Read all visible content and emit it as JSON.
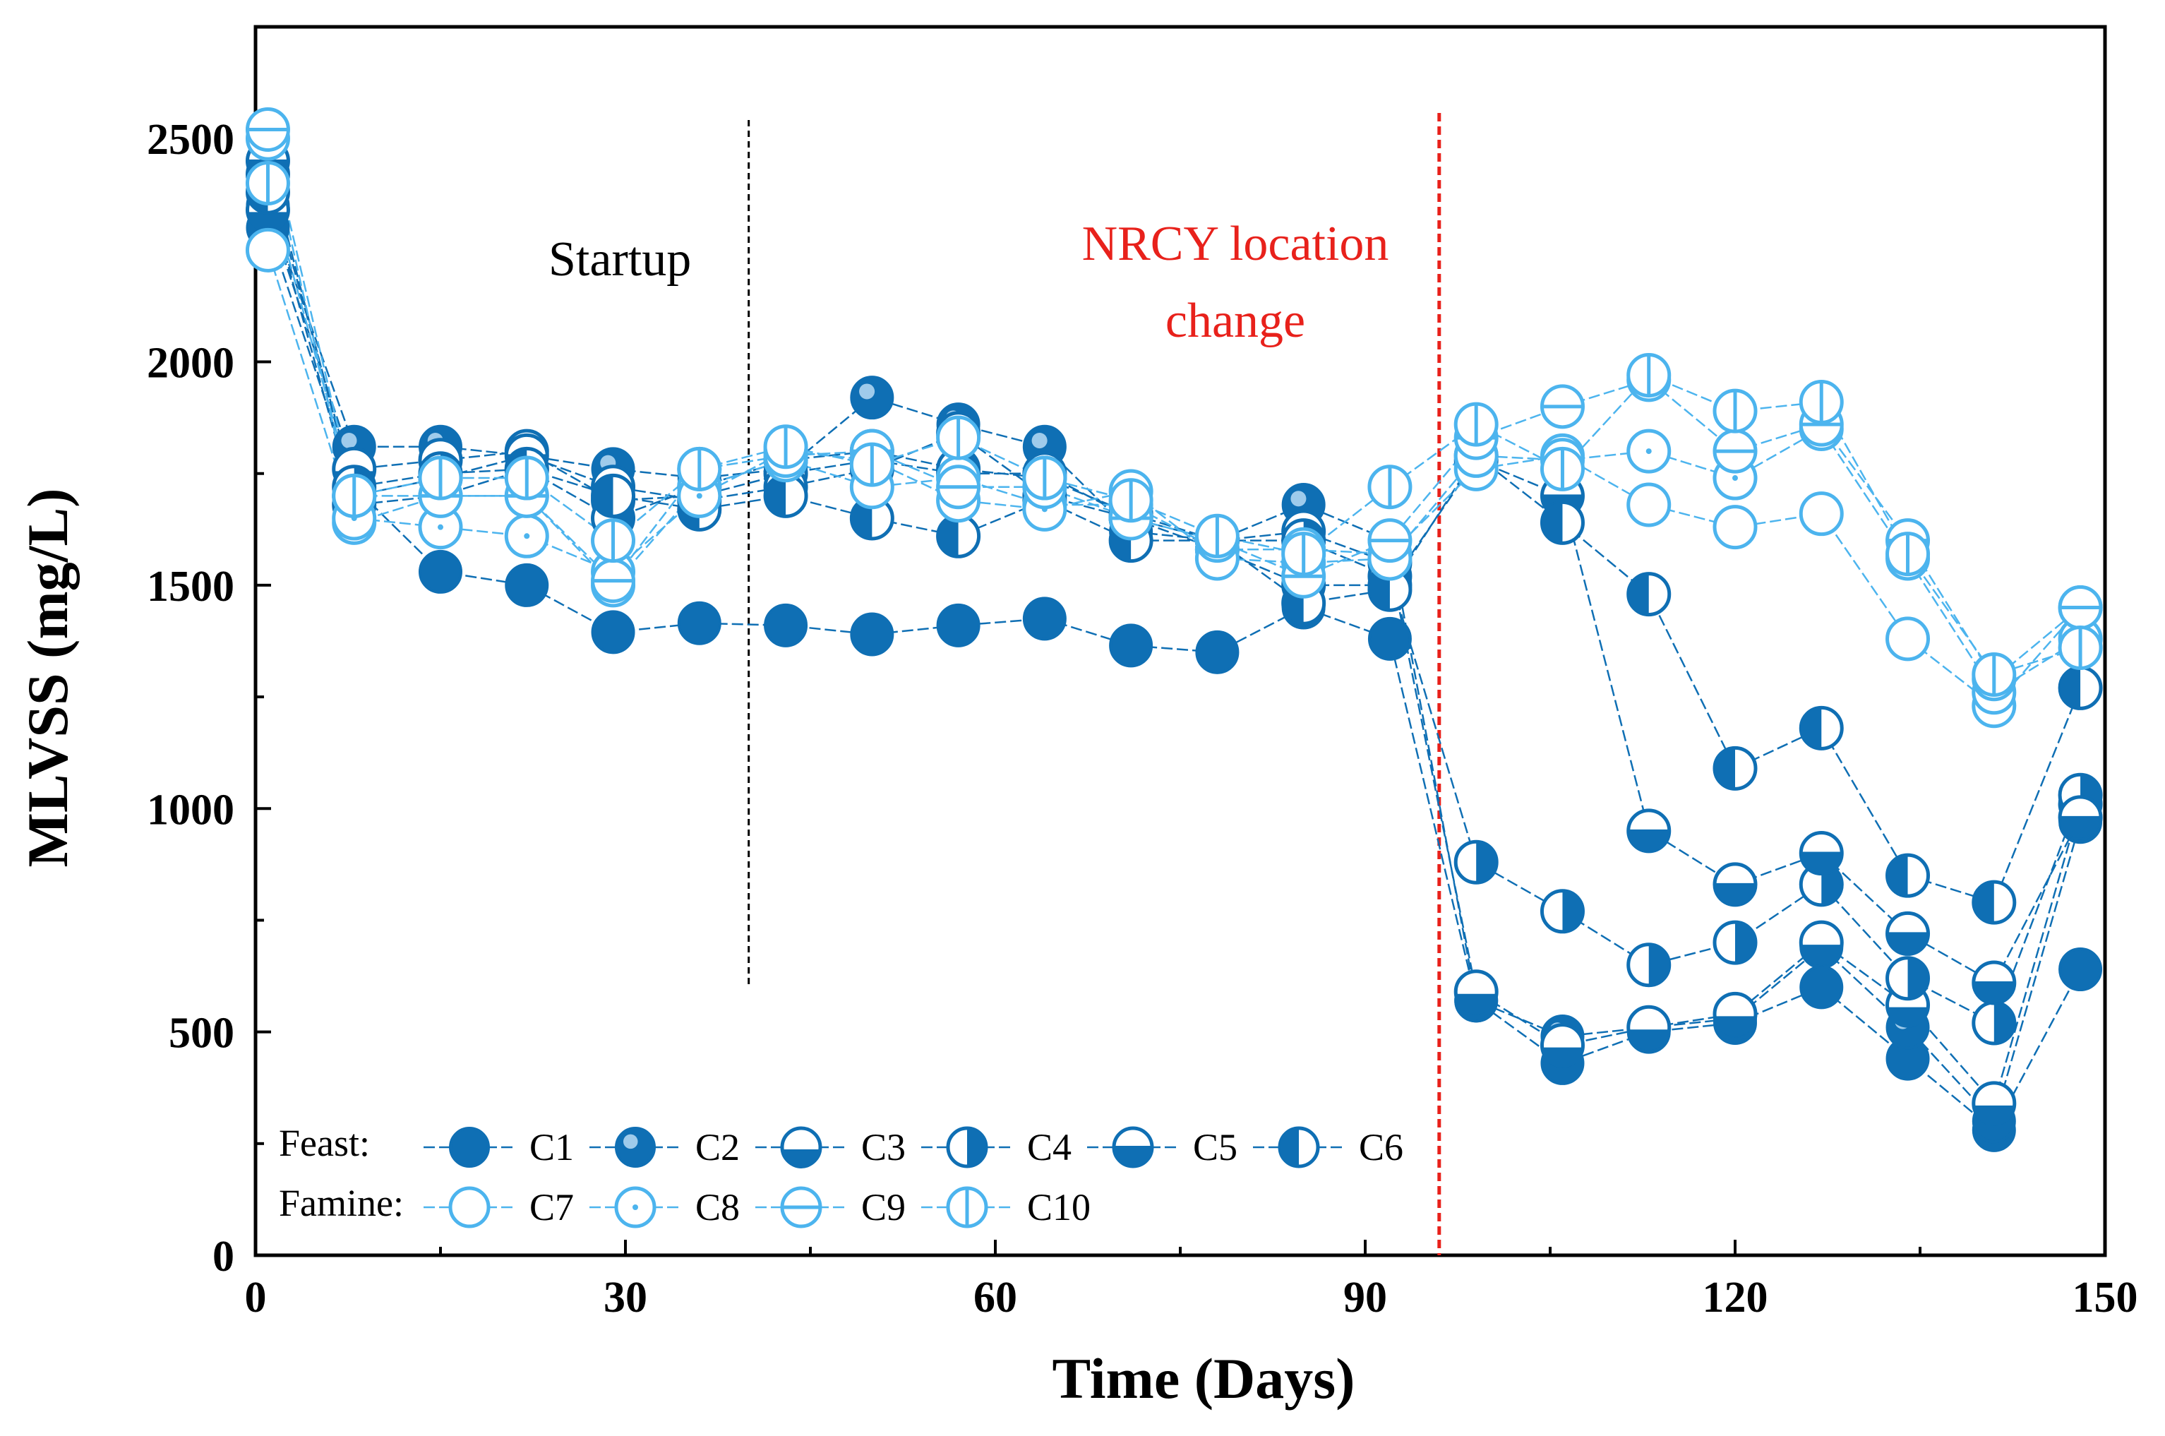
{
  "chart_data": {
    "type": "line",
    "title": "",
    "xlabel": "Time (Days)",
    "ylabel": "MLVSS (mg/L)",
    "xlim": [
      0,
      150
    ],
    "ylim": [
      0,
      2750
    ],
    "xticks": [
      0,
      30,
      60,
      90,
      120,
      150
    ],
    "yticks": [
      0,
      500,
      1000,
      1500,
      2000,
      2500
    ],
    "x": [
      1,
      8,
      15,
      22,
      29,
      36,
      43,
      50,
      57,
      64,
      71,
      78,
      85,
      92,
      99,
      106,
      113,
      120,
      127,
      134,
      141,
      148
    ],
    "series": [
      {
        "name": "C1",
        "group": "Feast",
        "marker": "filled",
        "values": [
          2300,
          1720,
          1530,
          1500,
          1395,
          1415,
          1410,
          1390,
          1410,
          1425,
          1365,
          1350,
          1450,
          1380,
          570,
          430,
          500,
          520,
          600,
          440,
          280,
          640
        ]
      },
      {
        "name": "C2",
        "group": "Feast",
        "marker": "shaded",
        "values": [
          2350,
          1810,
          1810,
          1790,
          1760,
          1740,
          1760,
          1920,
          1860,
          1810,
          1620,
          1600,
          1680,
          1600,
          570,
          490,
          510,
          530,
          690,
          510,
          300,
          970
        ]
      },
      {
        "name": "C3",
        "group": "Feast",
        "marker": "half-bottom",
        "values": [
          2340,
          1760,
          1780,
          1800,
          1690,
          1700,
          1750,
          1780,
          1750,
          1750,
          1650,
          1600,
          1620,
          1550,
          590,
          470,
          510,
          540,
          700,
          560,
          340,
          1010
        ]
      },
      {
        "name": "C4",
        "group": "Feast",
        "marker": "half-right",
        "values": [
          2420,
          1720,
          1750,
          1760,
          1650,
          1720,
          1780,
          1800,
          1760,
          1740,
          1660,
          1600,
          1600,
          1520,
          880,
          770,
          650,
          700,
          830,
          620,
          520,
          1030
        ]
      },
      {
        "name": "C5",
        "group": "Feast",
        "marker": "half-bottom-ring",
        "values": [
          2450,
          1700,
          1740,
          1790,
          1720,
          1690,
          1720,
          1760,
          1840,
          1700,
          1650,
          1580,
          1500,
          1500,
          1780,
          1700,
          950,
          830,
          900,
          720,
          610,
          980
        ]
      },
      {
        "name": "C6",
        "group": "Feast",
        "marker": "half-left",
        "values": [
          2380,
          1680,
          1700,
          1760,
          1700,
          1670,
          1700,
          1650,
          1610,
          1690,
          1600,
          1600,
          1460,
          1490,
          1790,
          1640,
          1480,
          1090,
          1180,
          850,
          790,
          1270
        ]
      },
      {
        "name": "C7",
        "group": "Famine",
        "marker": "open",
        "values": [
          2250,
          1640,
          1700,
          1700,
          1500,
          1720,
          1780,
          1720,
          1740,
          1680,
          1680,
          1580,
          1580,
          1570,
          1760,
          1790,
          1680,
          1630,
          1660,
          1380,
          1230,
          1450
        ]
      },
      {
        "name": "C8",
        "group": "Famine",
        "marker": "open-dot",
        "values": [
          2500,
          1650,
          1630,
          1610,
          1530,
          1700,
          1800,
          1780,
          1690,
          1670,
          1710,
          1560,
          1550,
          1560,
          1790,
          1780,
          1800,
          1740,
          1850,
          1560,
          1260,
          1380
        ]
      },
      {
        "name": "C9",
        "group": "Famine",
        "marker": "open-hline",
        "values": [
          2520,
          1700,
          1700,
          1700,
          1510,
          1760,
          1790,
          1800,
          1720,
          1720,
          1650,
          1600,
          1520,
          1600,
          1830,
          1900,
          1960,
          1800,
          1860,
          1600,
          1290,
          1450
        ]
      },
      {
        "name": "C10",
        "group": "Famine",
        "marker": "open-vline",
        "values": [
          2400,
          1700,
          1740,
          1740,
          1600,
          1760,
          1810,
          1770,
          1830,
          1740,
          1690,
          1610,
          1570,
          1720,
          1860,
          1760,
          1970,
          1890,
          1910,
          1570,
          1300,
          1360
        ]
      }
    ],
    "vlines": [
      {
        "x": 40,
        "color": "#000000",
        "style": "dashed",
        "label": "Startup"
      },
      {
        "x": 96,
        "color": "#e8211b",
        "style": "dashed",
        "label": "NRCY location change"
      }
    ],
    "annotations": [
      {
        "text": "Startup",
        "color": "#000000"
      },
      {
        "text": "NRCY location",
        "color": "#e8211b"
      },
      {
        "text": "change",
        "color": "#e8211b"
      }
    ],
    "legend": {
      "placement": "bottom-left",
      "rows": [
        {
          "label": "Feast:",
          "series": [
            "C1",
            "C2",
            "C3",
            "C4",
            "C5",
            "C6"
          ]
        },
        {
          "label": "Famine:",
          "series": [
            "C7",
            "C8",
            "C9",
            "C10"
          ]
        }
      ]
    },
    "colors": {
      "feast": "#0f6fb4",
      "famine": "#4cb4ee",
      "axis": "#000000",
      "nrcy": "#e8211b"
    }
  }
}
